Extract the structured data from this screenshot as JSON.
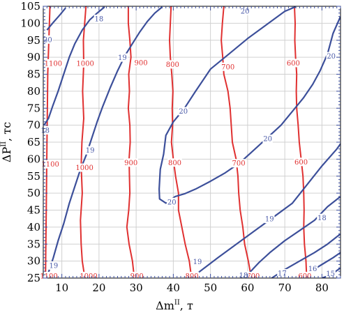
{
  "chart_data": {
    "type": "contour",
    "xlabel_base": "Δm",
    "xlabel_sup": "II",
    "xlabel_unit": ", т",
    "ylabel_base": "ΔP",
    "ylabel_sup": "II",
    "ylabel_unit": ", тс",
    "xlim": [
      5,
      85
    ],
    "ylim": [
      25,
      105
    ],
    "xticks": [
      10,
      20,
      30,
      40,
      50,
      60,
      70,
      80
    ],
    "yticks": [
      25,
      30,
      35,
      40,
      45,
      50,
      55,
      60,
      65,
      70,
      75,
      80,
      85,
      90,
      95,
      100,
      105
    ],
    "grid": true,
    "colors": {
      "red": "#e03030",
      "blue": "#3c4f9a",
      "blue_label": "#4a5aa8",
      "grid": "#d0d0d0",
      "axis_ticks": "#3c4fa0"
    },
    "series": [
      {
        "color": "red",
        "level": "1100",
        "points": [
          [
            6.8,
            105
          ],
          [
            6.5,
            95
          ],
          [
            6.2,
            85
          ],
          [
            6.1,
            75
          ],
          [
            6.0,
            65
          ],
          [
            5.9,
            55
          ],
          [
            5.8,
            45
          ],
          [
            5.7,
            35
          ],
          [
            5.6,
            25
          ]
        ],
        "labels": [
          {
            "text": "1100",
            "x": 7.7,
            "y": 88.2
          },
          {
            "text": "1100",
            "x": 6.9,
            "y": 58.5
          },
          {
            "text": "1100",
            "x": 6.5,
            "y": 25.6
          }
        ]
      },
      {
        "color": "red",
        "level": "1000",
        "points": [
          [
            16.5,
            105
          ],
          [
            15.8,
            95
          ],
          [
            15.9,
            88
          ],
          [
            15.6,
            80
          ],
          [
            15.9,
            72
          ],
          [
            15.4,
            65
          ],
          [
            15.2,
            58
          ],
          [
            15.5,
            50
          ],
          [
            15.0,
            42
          ],
          [
            15.2,
            35
          ],
          [
            15.5,
            30
          ],
          [
            16.2,
            25
          ]
        ],
        "labels": [
          {
            "text": "1000",
            "x": 16.3,
            "y": 88.2
          },
          {
            "text": "1000",
            "x": 16.1,
            "y": 57.5
          },
          {
            "text": "1000",
            "x": 17.2,
            "y": 25.6
          }
        ]
      },
      {
        "color": "red",
        "level": "900",
        "points": [
          [
            27.9,
            105
          ],
          [
            27.9,
            100
          ],
          [
            28.3,
            95
          ],
          [
            28.6,
            90
          ],
          [
            28.0,
            85
          ],
          [
            28.2,
            80
          ],
          [
            27.9,
            75
          ],
          [
            28.3,
            70
          ],
          [
            28.4,
            65
          ],
          [
            28.1,
            60
          ],
          [
            28.2,
            55
          ],
          [
            28.3,
            50
          ],
          [
            28.0,
            45
          ],
          [
            27.5,
            40
          ],
          [
            28.1,
            35
          ],
          [
            29.0,
            30
          ],
          [
            29.5,
            25
          ]
        ],
        "labels": [
          {
            "text": "900",
            "x": 31.3,
            "y": 88.4
          },
          {
            "text": "900",
            "x": 28.6,
            "y": 59.0
          },
          {
            "text": "900",
            "x": 30.2,
            "y": 25.6
          }
        ]
      },
      {
        "color": "red",
        "level": "800",
        "points": [
          [
            39.4,
            105
          ],
          [
            39.0,
            95
          ],
          [
            39.2,
            90
          ],
          [
            39.6,
            85
          ],
          [
            39.9,
            80
          ],
          [
            39.7,
            75
          ],
          [
            39.8,
            70
          ],
          [
            39.5,
            65
          ],
          [
            40.0,
            60
          ],
          [
            40.6,
            55
          ],
          [
            41.4,
            50
          ],
          [
            41.4,
            45
          ],
          [
            42.3,
            40
          ],
          [
            43.2,
            35
          ],
          [
            44.3,
            30
          ],
          [
            44.9,
            25
          ]
        ],
        "labels": [
          {
            "text": "800",
            "x": 39.8,
            "y": 87.9
          },
          {
            "text": "800",
            "x": 40.4,
            "y": 59.0
          },
          {
            "text": "800",
            "x": 45.0,
            "y": 25.6
          }
        ]
      },
      {
        "color": "red",
        "level": "700",
        "points": [
          [
            53.6,
            105
          ],
          [
            53.2,
            100
          ],
          [
            52.9,
            95
          ],
          [
            53.3,
            90
          ],
          [
            53.6,
            85
          ],
          [
            54.7,
            80
          ],
          [
            55.3,
            75
          ],
          [
            55.6,
            70
          ],
          [
            55.9,
            65
          ],
          [
            56.9,
            60
          ],
          [
            57.4,
            55
          ],
          [
            57.6,
            50
          ],
          [
            58.0,
            45
          ],
          [
            58.7,
            40
          ],
          [
            59.2,
            35
          ],
          [
            60.2,
            30
          ],
          [
            61.0,
            25
          ]
        ],
        "labels": [
          {
            "text": "700",
            "x": 54.7,
            "y": 87.2
          },
          {
            "text": "700",
            "x": 57.6,
            "y": 58.8
          },
          {
            "text": "700",
            "x": 61.5,
            "y": 25.6
          }
        ]
      },
      {
        "color": "red",
        "level": "600",
        "points": [
          [
            72.6,
            105
          ],
          [
            72.8,
            100
          ],
          [
            72.7,
            95
          ],
          [
            72.9,
            90
          ],
          [
            73.2,
            85
          ],
          [
            73.1,
            80
          ],
          [
            73.2,
            75
          ],
          [
            73.6,
            70
          ],
          [
            73.9,
            65
          ],
          [
            74.4,
            60
          ],
          [
            74.9,
            55
          ],
          [
            75.1,
            50
          ],
          [
            75.2,
            45
          ],
          [
            75.1,
            40
          ],
          [
            75.3,
            35
          ],
          [
            75.7,
            30
          ],
          [
            75.9,
            25
          ]
        ],
        "labels": [
          {
            "text": "600",
            "x": 72.3,
            "y": 88.3
          },
          {
            "text": "600",
            "x": 74.4,
            "y": 59.2
          },
          {
            "text": "600",
            "x": 75.4,
            "y": 25.6
          }
        ]
      },
      {
        "color": "blue",
        "level": "20",
        "points": [
          [
            6.0,
            98
          ],
          [
            7.5,
            100
          ],
          [
            9.5,
            102.5
          ],
          [
            11.0,
            104.5
          ]
        ],
        "labels": [
          {
            "text": "20",
            "x": 6.2,
            "y": 95.2
          }
        ]
      },
      {
        "color": "blue",
        "level": "18",
        "points": [
          [
            5.2,
            70
          ],
          [
            6.4,
            72
          ],
          [
            7.5,
            75.5
          ],
          [
            9.0,
            80
          ],
          [
            10.5,
            85
          ],
          [
            12.0,
            90
          ],
          [
            13.5,
            94
          ],
          [
            15.5,
            98
          ],
          [
            17.5,
            101
          ],
          [
            19.5,
            103
          ],
          [
            21.5,
            104.8
          ]
        ],
        "labels": [
          {
            "text": "18",
            "x": 20.0,
            "y": 101.3
          },
          {
            "text": "18",
            "x": 5.5,
            "y": 68.5
          }
        ]
      },
      {
        "color": "blue",
        "level": "19",
        "points": [
          [
            5.5,
            24.5
          ],
          [
            6.5,
            27
          ],
          [
            7.7,
            31
          ],
          [
            9.0,
            36
          ],
          [
            10.5,
            41
          ],
          [
            12.0,
            47
          ],
          [
            13.5,
            52
          ],
          [
            15.0,
            57
          ],
          [
            16.5,
            61
          ],
          [
            18.0,
            66
          ],
          [
            19.5,
            71
          ],
          [
            21.0,
            75.5
          ],
          [
            23.0,
            81
          ],
          [
            25.0,
            86
          ],
          [
            27.0,
            90.5
          ],
          [
            29.0,
            94
          ],
          [
            31.0,
            97.5
          ],
          [
            33.0,
            100.5
          ],
          [
            35.0,
            103
          ],
          [
            37.0,
            104.8
          ]
        ],
        "labels": [
          {
            "text": "19",
            "x": 26.3,
            "y": 89.9
          },
          {
            "text": "19",
            "x": 17.6,
            "y": 62.6
          },
          {
            "text": "19",
            "x": 7.8,
            "y": 28.7
          }
        ]
      },
      {
        "color": "blue",
        "level": "20",
        "points": [
          [
            38.1,
            47.0
          ],
          [
            36.3,
            48.3
          ],
          [
            36.2,
            51.2
          ],
          [
            36.5,
            57.0
          ],
          [
            37.4,
            61.5
          ],
          [
            38.0,
            67.0
          ],
          [
            40.0,
            71.0
          ],
          [
            43.0,
            75.0
          ],
          [
            46.0,
            80.0
          ],
          [
            50.0,
            86.5
          ],
          [
            55.0,
            91.0
          ],
          [
            60.0,
            95.5
          ],
          [
            65.0,
            99.5
          ],
          [
            70.0,
            103.5
          ],
          [
            73.0,
            104.9
          ]
        ],
        "labels": [
          {
            "text": "20",
            "x": 59.3,
            "y": 103.6
          },
          {
            "text": "20",
            "x": 42.7,
            "y": 74.1
          }
        ]
      },
      {
        "color": "blue",
        "level": "20",
        "points": [
          [
            85.0,
            102.0
          ],
          [
            83.0,
            97.0
          ],
          [
            81.5,
            91.0
          ],
          [
            79.5,
            86.0
          ],
          [
            77.5,
            82.0
          ],
          [
            75.0,
            78.0
          ],
          [
            72.0,
            74.0
          ],
          [
            69.0,
            70.0
          ],
          [
            66.0,
            67.0
          ],
          [
            62.0,
            63.0
          ],
          [
            58.0,
            59.0
          ],
          [
            54.0,
            56.0
          ],
          [
            50.0,
            53.5
          ],
          [
            46.0,
            51.2
          ],
          [
            43.0,
            49.8
          ],
          [
            40.5,
            49.0
          ],
          [
            38.1,
            47.0
          ]
        ],
        "labels": [
          {
            "text": "20",
            "x": 82.5,
            "y": 90.3
          },
          {
            "text": "20",
            "x": 65.4,
            "y": 66.0
          },
          {
            "text": "20",
            "x": 39.6,
            "y": 47.4
          }
        ]
      },
      {
        "color": "blue",
        "level": "19",
        "points": [
          [
            46.0,
            26.0
          ],
          [
            52.0,
            31.0
          ],
          [
            57.0,
            35.0
          ],
          [
            62.0,
            39.0
          ],
          [
            67.0,
            43.0
          ],
          [
            72.0,
            47.0
          ],
          [
            76.0,
            52.5
          ],
          [
            80.0,
            58.0
          ],
          [
            84.0,
            63.0
          ],
          [
            85.0,
            64.5
          ]
        ],
        "labels": [
          {
            "text": "19",
            "x": 65.9,
            "y": 42.4
          },
          {
            "text": "19",
            "x": 46.5,
            "y": 29.8
          }
        ]
      },
      {
        "color": "blue",
        "level": "18",
        "points": [
          [
            60.0,
            26.0
          ],
          [
            63.0,
            29.5
          ],
          [
            66.0,
            32.5
          ],
          [
            70.0,
            36.0
          ],
          [
            74.0,
            39.0
          ],
          [
            78.0,
            42.0
          ],
          [
            81.5,
            46.0
          ],
          [
            85.0,
            49.0
          ]
        ],
        "labels": [
          {
            "text": "18",
            "x": 80.0,
            "y": 42.7
          },
          {
            "text": "18",
            "x": 58.9,
            "y": 25.8
          }
        ]
      },
      {
        "color": "blue",
        "level": "17",
        "points": [
          [
            66.5,
            25.0
          ],
          [
            70.0,
            27.5
          ],
          [
            74.0,
            30.0
          ],
          [
            78.0,
            32.5
          ],
          [
            81.5,
            35.0
          ],
          [
            85.0,
            38.0
          ]
        ],
        "labels": [
          {
            "text": "17",
            "x": 69.3,
            "y": 26.4
          }
        ]
      },
      {
        "color": "blue",
        "level": "16",
        "points": [
          [
            74.0,
            25.0
          ],
          [
            77.0,
            27.0
          ],
          [
            80.0,
            29.0
          ],
          [
            83.0,
            31.0
          ],
          [
            85.0,
            32.5
          ]
        ],
        "labels": [
          {
            "text": "16",
            "x": 77.5,
            "y": 27.8
          }
        ]
      },
      {
        "color": "blue",
        "level": "15",
        "points": [
          [
            80.0,
            25.0
          ],
          [
            82.5,
            26.0
          ],
          [
            85.0,
            28.0
          ]
        ],
        "labels": [
          {
            "text": "15",
            "x": 82.3,
            "y": 26.3
          }
        ]
      }
    ]
  }
}
